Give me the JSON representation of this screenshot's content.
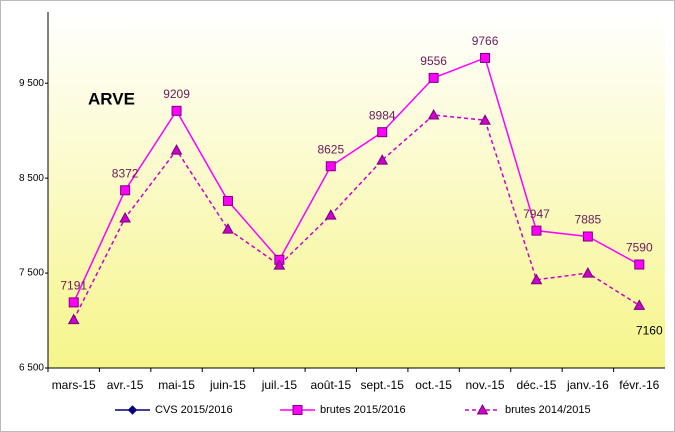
{
  "chart_data": {
    "type": "line",
    "title": "ARVE",
    "categories": [
      "mars-15",
      "avr.-15",
      "mai-15",
      "juin-15",
      "juil.-15",
      "août-15",
      "sept.-15",
      "oct.-15",
      "nov.-15",
      "déc.-15",
      "janv.-16",
      "févr.-16"
    ],
    "series": [
      {
        "name": "CVS 2015/2016",
        "color": "#000080",
        "marker": "diamond",
        "dash": false,
        "values": [
          null,
          null,
          null,
          null,
          null,
          null,
          null,
          null,
          null,
          null,
          null,
          null
        ]
      },
      {
        "name": "brutes 2015/2016",
        "color": "#ff00ff",
        "marker": "square",
        "dash": false,
        "values": [
          7191,
          8372,
          9209,
          8260,
          7640,
          8625,
          8984,
          9556,
          9766,
          7947,
          7885,
          7590
        ],
        "value_labels": [
          "7191",
          "8372",
          "9209",
          null,
          null,
          "8625",
          "8984",
          "9556",
          "9766",
          "7947",
          "7885",
          "7590"
        ]
      },
      {
        "name": "brutes 2014/2015",
        "color": "#cc00cc",
        "marker": "triangle",
        "dash": true,
        "values": [
          7010,
          8080,
          8795,
          7963,
          7584,
          8110,
          8690,
          9165,
          9110,
          7430,
          7500,
          7160
        ],
        "value_labels": [
          null,
          null,
          null,
          null,
          null,
          null,
          null,
          null,
          null,
          null,
          null,
          "7160"
        ]
      }
    ],
    "ylim": [
      6500,
      10250
    ],
    "yticks": [
      {
        "value": 6500,
        "label": "6 500"
      },
      {
        "value": 7500,
        "label": "7 500"
      },
      {
        "value": 8500,
        "label": "8 500"
      },
      {
        "value": 9500,
        "label": "9 500"
      }
    ],
    "grid": false,
    "legend": "bottom"
  }
}
